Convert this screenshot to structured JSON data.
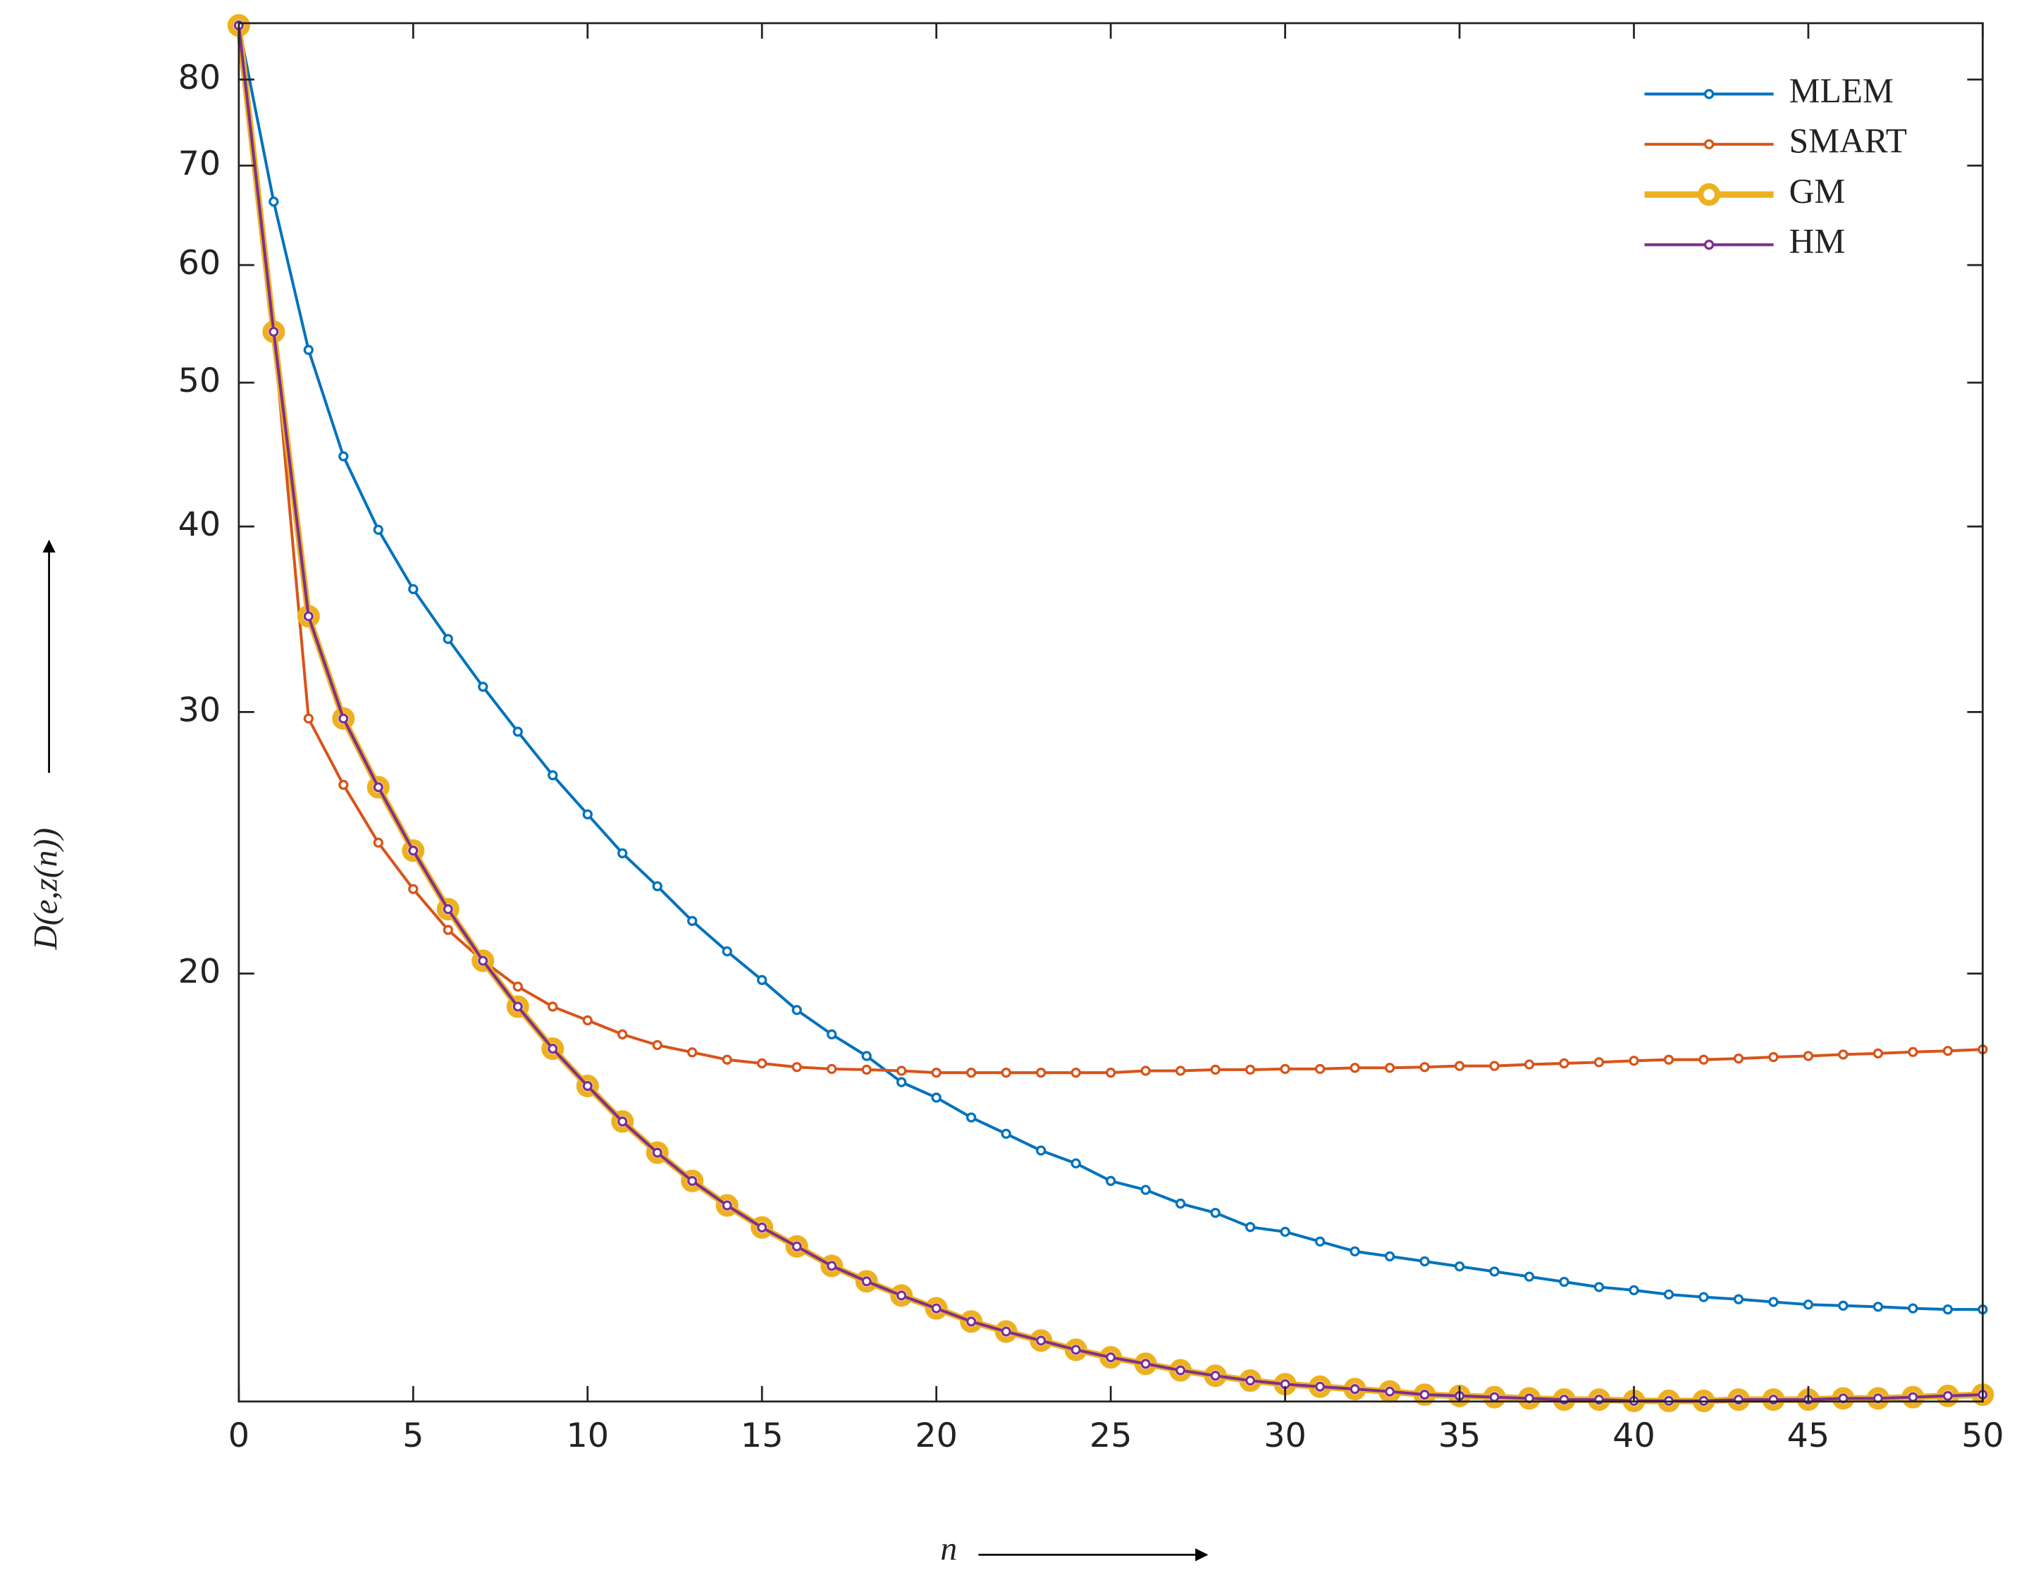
{
  "chart_data": {
    "type": "line",
    "x_label": "n",
    "y_label": "D(e,z(n))",
    "x": [
      0,
      1,
      2,
      3,
      4,
      5,
      6,
      7,
      8,
      9,
      10,
      11,
      12,
      13,
      14,
      15,
      16,
      17,
      18,
      19,
      20,
      21,
      22,
      23,
      24,
      25,
      26,
      27,
      28,
      29,
      30,
      31,
      32,
      33,
      34,
      35,
      36,
      37,
      38,
      39,
      40,
      41,
      42,
      43,
      44,
      45,
      46,
      47,
      48,
      49,
      50
    ],
    "xlim": [
      0,
      50
    ],
    "xticks": [
      0,
      5,
      10,
      15,
      20,
      25,
      30,
      35,
      40,
      45,
      50
    ],
    "ylim": [
      10.3,
      87.3
    ],
    "yticks": [
      20,
      30,
      40,
      50,
      60,
      70,
      80
    ],
    "log_y": true,
    "legend": "northeast",
    "series": [
      {
        "name": "MLEM",
        "color": "#0072bd",
        "line_width": 2.2,
        "marker": "small",
        "values": [
          87.0,
          66.2,
          52.6,
          44.6,
          39.8,
          36.3,
          33.6,
          31.2,
          29.1,
          27.2,
          25.6,
          24.1,
          22.9,
          21.7,
          20.7,
          19.8,
          18.9,
          18.2,
          17.6,
          16.9,
          16.5,
          16.0,
          15.6,
          15.2,
          14.9,
          14.5,
          14.3,
          14.0,
          13.8,
          13.5,
          13.4,
          13.2,
          13.0,
          12.9,
          12.8,
          12.7,
          12.6,
          12.5,
          12.4,
          12.3,
          12.24,
          12.16,
          12.11,
          12.07,
          12.02,
          11.97,
          11.95,
          11.93,
          11.9,
          11.88,
          11.88
        ]
      },
      {
        "name": "SMART",
        "color": "#d95319",
        "line_width": 2.2,
        "marker": "small",
        "values": [
          87.0,
          54.1,
          29.7,
          26.8,
          24.5,
          22.8,
          21.4,
          20.4,
          19.6,
          19.0,
          18.6,
          18.2,
          17.9,
          17.7,
          17.5,
          17.4,
          17.3,
          17.25,
          17.23,
          17.2,
          17.15,
          17.15,
          17.15,
          17.15,
          17.15,
          17.15,
          17.2,
          17.2,
          17.23,
          17.23,
          17.25,
          17.25,
          17.28,
          17.28,
          17.3,
          17.33,
          17.33,
          17.37,
          17.4,
          17.43,
          17.47,
          17.5,
          17.5,
          17.53,
          17.57,
          17.6,
          17.64,
          17.67,
          17.71,
          17.74,
          17.78
        ]
      },
      {
        "name": "GM",
        "color": "#edb120",
        "line_width": 5,
        "marker": "large",
        "values": [
          87.0,
          54.1,
          34.8,
          29.7,
          26.7,
          24.2,
          22.1,
          20.4,
          19.0,
          17.8,
          16.8,
          15.9,
          15.15,
          14.5,
          13.96,
          13.49,
          13.1,
          12.71,
          12.41,
          12.14,
          11.9,
          11.66,
          11.48,
          11.32,
          11.16,
          11.03,
          10.92,
          10.81,
          10.72,
          10.64,
          10.58,
          10.54,
          10.5,
          10.46,
          10.41,
          10.39,
          10.37,
          10.35,
          10.33,
          10.33,
          10.31,
          10.31,
          10.31,
          10.33,
          10.33,
          10.33,
          10.35,
          10.35,
          10.37,
          10.39,
          10.41
        ]
      },
      {
        "name": "HM",
        "color": "#7e2f8e",
        "line_width": 2.2,
        "marker": "small",
        "values": [
          87.0,
          54.1,
          34.8,
          29.7,
          26.7,
          24.2,
          22.1,
          20.4,
          19.0,
          17.8,
          16.8,
          15.9,
          15.15,
          14.5,
          13.96,
          13.49,
          13.1,
          12.71,
          12.41,
          12.14,
          11.9,
          11.66,
          11.48,
          11.32,
          11.16,
          11.03,
          10.92,
          10.81,
          10.72,
          10.64,
          10.58,
          10.54,
          10.5,
          10.46,
          10.41,
          10.39,
          10.37,
          10.35,
          10.33,
          10.33,
          10.31,
          10.31,
          10.31,
          10.33,
          10.33,
          10.33,
          10.35,
          10.35,
          10.37,
          10.39,
          10.41
        ]
      }
    ]
  }
}
